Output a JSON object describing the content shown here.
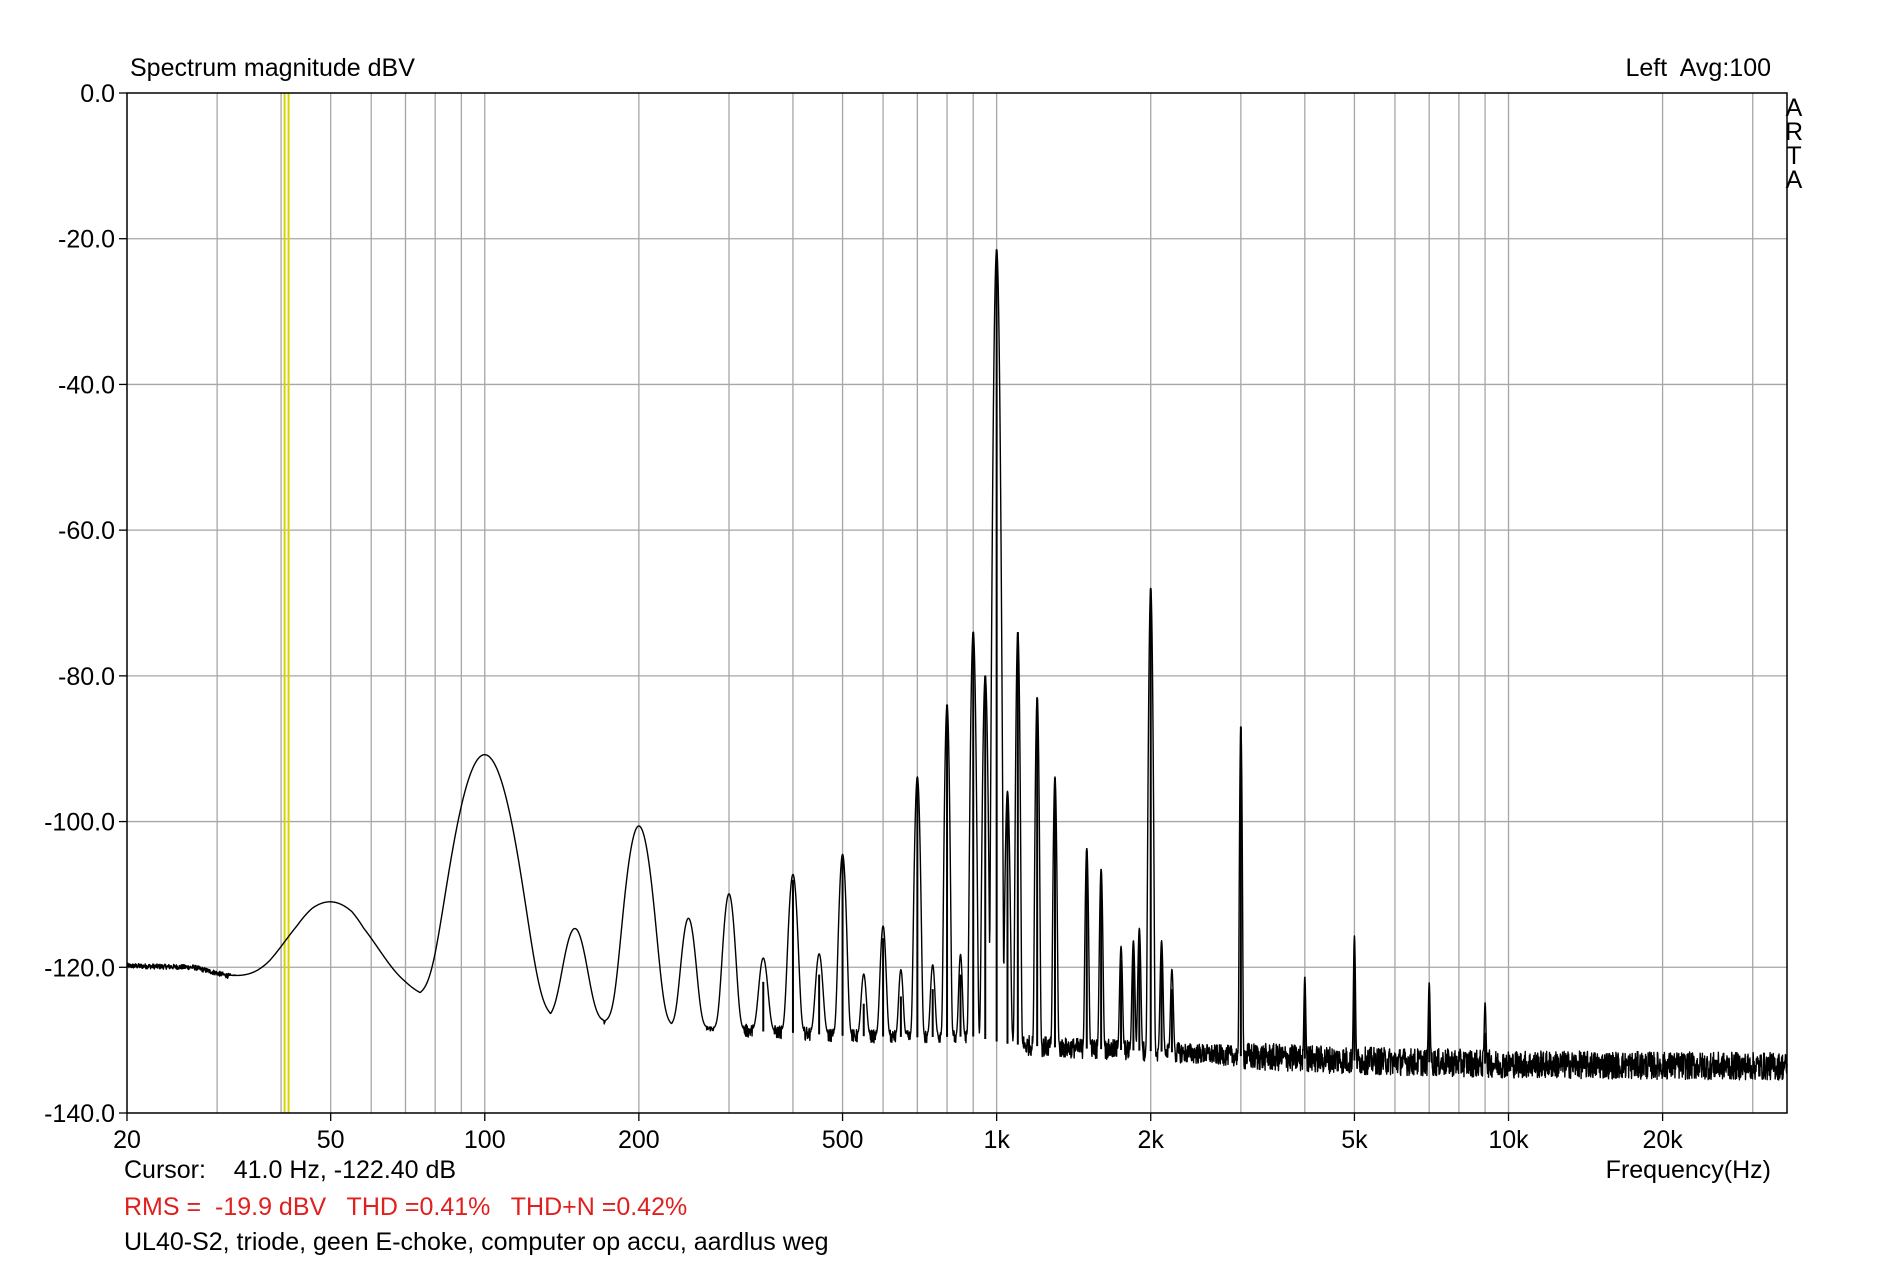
{
  "chart_data": {
    "type": "line",
    "title": "Spectrum magnitude dBV",
    "top_right": "Left  Avg:100",
    "brand": [
      "A",
      "R",
      "T",
      "A"
    ],
    "xlabel": "Frequency(Hz)",
    "x_scale": "log",
    "xlim": [
      20,
      35000
    ],
    "ylim": [
      -140,
      0
    ],
    "x_ticks": [
      {
        "value": 20,
        "label": "20"
      },
      {
        "value": 50,
        "label": "50"
      },
      {
        "value": 100,
        "label": "100"
      },
      {
        "value": 200,
        "label": "200"
      },
      {
        "value": 500,
        "label": "500"
      },
      {
        "value": 1000,
        "label": "1k"
      },
      {
        "value": 2000,
        "label": "2k"
      },
      {
        "value": 5000,
        "label": "5k"
      },
      {
        "value": 10000,
        "label": "10k"
      },
      {
        "value": 20000,
        "label": "20k"
      }
    ],
    "y_ticks": [
      {
        "value": 0,
        "label": "0.0"
      },
      {
        "value": -20,
        "label": "-20.0"
      },
      {
        "value": -40,
        "label": "-40.0"
      },
      {
        "value": -60,
        "label": "-60.0"
      },
      {
        "value": -80,
        "label": "-80.0"
      },
      {
        "value": -100,
        "label": "-100.0"
      },
      {
        "value": -120,
        "label": "-120.0"
      },
      {
        "value": -140,
        "label": "-140.0"
      }
    ],
    "grid": true,
    "cursor_frequency_hz": 41.0,
    "series": [
      {
        "noise_floor": [
          [
            20,
            -119.8
          ],
          [
            27,
            -120
          ],
          [
            32,
            -121.3
          ],
          [
            38,
            -122.3
          ],
          [
            43,
            -122.4
          ],
          [
            46,
            -121.5
          ],
          [
            55,
            -122
          ],
          [
            58,
            -123.6
          ],
          [
            63,
            -123.6
          ],
          [
            70,
            -123.7
          ],
          [
            80,
            -124.5
          ],
          [
            88,
            -124.6
          ],
          [
            97,
            -123.5
          ],
          [
            104,
            -126
          ],
          [
            130,
            -127
          ],
          [
            160,
            -127.4
          ],
          [
            190,
            -127.6
          ],
          [
            230,
            -128
          ],
          [
            300,
            -128.6
          ],
          [
            400,
            -129
          ],
          [
            500,
            -129.4
          ],
          [
            700,
            -129.6
          ],
          [
            900,
            -129.5
          ],
          [
            1050,
            -130.5
          ],
          [
            1300,
            -131
          ],
          [
            2000,
            -131.5
          ],
          [
            3000,
            -132.2
          ],
          [
            5000,
            -132.8
          ],
          [
            10000,
            -133.3
          ],
          [
            20000,
            -133.5
          ],
          [
            35000,
            -133.6
          ]
        ],
        "peaks": [
          {
            "f": 50,
            "db": -114,
            "width": 0.09
          },
          {
            "f": 100,
            "db": -91,
            "width": 0.05
          },
          {
            "f": 150,
            "db": -117,
            "width": 0.025
          },
          {
            "f": 200,
            "db": -101,
            "width": 0.025
          },
          {
            "f": 250,
            "db": -115,
            "width": 0.015
          },
          {
            "f": 300,
            "db": -111,
            "width": 0.012
          },
          {
            "f": 350,
            "db": -122,
            "width": 0.01
          },
          {
            "f": 400,
            "db": -108,
            "width": 0.009
          },
          {
            "f": 450,
            "db": -121,
            "width": 0.008
          },
          {
            "f": 500,
            "db": -105,
            "width": 0.007
          },
          {
            "f": 550,
            "db": -125,
            "width": 0.006
          },
          {
            "f": 600,
            "db": -116,
            "width": 0.006
          },
          {
            "f": 650,
            "db": -124,
            "width": 0.005
          },
          {
            "f": 700,
            "db": -94,
            "width": 0.005
          },
          {
            "f": 750,
            "db": -123,
            "width": 0.005
          },
          {
            "f": 800,
            "db": -84,
            "width": 0.004
          },
          {
            "f": 850,
            "db": -121,
            "width": 0.004
          },
          {
            "f": 900,
            "db": -74,
            "width": 0.004
          },
          {
            "f": 950,
            "db": -80,
            "width": 0.004
          },
          {
            "f": 1000,
            "db": -21.5,
            "width": 0.004
          },
          {
            "f": 1050,
            "db": -96,
            "width": 0.004
          },
          {
            "f": 1100,
            "db": -74,
            "width": 0.003
          },
          {
            "f": 1200,
            "db": -83,
            "width": 0.003
          },
          {
            "f": 1300,
            "db": -94,
            "width": 0.003
          },
          {
            "f": 1500,
            "db": -104,
            "width": 0.003
          },
          {
            "f": 1600,
            "db": -107,
            "width": 0.003
          },
          {
            "f": 1750,
            "db": -119,
            "width": 0.003
          },
          {
            "f": 1850,
            "db": -118,
            "width": 0.003
          },
          {
            "f": 1900,
            "db": -116,
            "width": 0.003
          },
          {
            "f": 2000,
            "db": -68,
            "width": 0.003
          },
          {
            "f": 2100,
            "db": -118,
            "width": 0.003
          },
          {
            "f": 2200,
            "db": -123,
            "width": 0.003
          },
          {
            "f": 3000,
            "db": -87,
            "width": 0.002
          },
          {
            "f": 4000,
            "db": -124,
            "width": 0.002
          },
          {
            "f": 5000,
            "db": -117,
            "width": 0.002
          },
          {
            "f": 7000,
            "db": -125,
            "width": 0.002
          },
          {
            "f": 9000,
            "db": -129,
            "width": 0.002
          }
        ]
      }
    ]
  },
  "cursor_readout": "Cursor:    41.0 Hz, -122.40 dB",
  "stats": "RMS =  -19.9 dBV   THD =0.41%   THD+N =0.42%",
  "caption": "UL40-S2, triode, geen E-choke, computer op accu, aardlus weg",
  "colors": {
    "trace": "#000000",
    "grid": "#a6a6a6",
    "cursor": "#d8d400",
    "stats": "#e0201e",
    "frame": "#000000"
  }
}
